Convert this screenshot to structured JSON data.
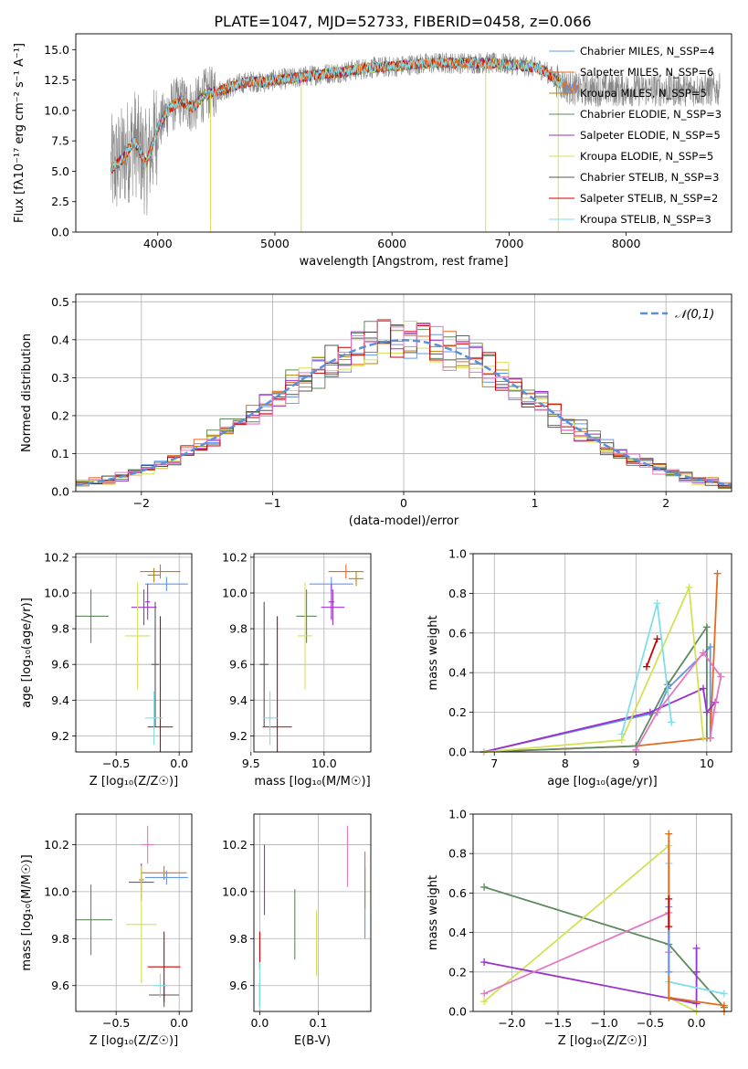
{
  "figure": {
    "title": "PLATE=1047, MJD=52733, FIBERID=0458, z=0.066"
  },
  "colors": {
    "series": [
      "#6495ed",
      "#e66a1e",
      "#b8860b",
      "#5f8a5f",
      "#9932cc",
      "#d4e157",
      "#555555",
      "#cc0000",
      "#80deea"
    ],
    "normal_curve": "#5b8fd6",
    "spectrum_data": "#888888",
    "grid": "#b0b0b0"
  },
  "chart_data": [
    {
      "id": "spectrum",
      "type": "line",
      "title": "PLATE=1047, MJD=52733, FIBERID=0458, z=0.066",
      "xlabel": "wavelength [Angstrom, rest frame]",
      "ylabel": "Flux [fλ10⁻¹⁷ erg cm⁻² s⁻¹ A⁻¹]",
      "xlim": [
        3300,
        8900
      ],
      "ylim": [
        0,
        16.3
      ],
      "xticks": [
        4000,
        5000,
        6000,
        7000,
        8000
      ],
      "yticks": [
        0.0,
        2.5,
        5.0,
        7.5,
        10.0,
        12.5,
        15.0
      ],
      "grid": false,
      "legend_position": "right",
      "legend": [
        "Chabrier MILES, N_SSP=4",
        "Salpeter MILES, N_SSP=6",
        "Kroupa MILES, N_SSP=5",
        "Chabrier ELODIE, N_SSP=3",
        "Salpeter ELODIE, N_SSP=5",
        "Kroupa ELODIE, N_SSP=5",
        "Chabrier STELIB, N_SSP=3",
        "Salpeter STELIB, N_SSP=2",
        "Kroupa STELIB, N_SSP=3"
      ],
      "continuum": {
        "x": [
          3600,
          3700,
          3800,
          3900,
          4000,
          4100,
          4200,
          4300,
          4400,
          4500,
          4600,
          4700,
          4800,
          4900,
          5000,
          5200,
          5400,
          5600,
          5800,
          6000,
          6200,
          6400,
          6600,
          6800,
          7000,
          7200,
          7300,
          7400,
          7500,
          7600
        ],
        "y": [
          5.2,
          6.0,
          7.5,
          5.6,
          8.5,
          10.2,
          10.8,
          10.2,
          11.3,
          11.6,
          11.8,
          12.2,
          12.4,
          12.3,
          12.5,
          12.7,
          13.0,
          13.2,
          13.5,
          13.6,
          13.8,
          13.9,
          13.9,
          13.9,
          13.8,
          13.6,
          13.3,
          12.5,
          11.9,
          11.7
        ]
      },
      "data_xmax": 8800
    },
    {
      "id": "residuals",
      "type": "line",
      "xlabel": "(data-model)/error",
      "ylabel": "Normed distribution",
      "xlim": [
        -2.5,
        2.5
      ],
      "ylim": [
        0,
        0.52
      ],
      "xticks": [
        -2,
        -1,
        0,
        1,
        2
      ],
      "yticks": [
        0.0,
        0.1,
        0.2,
        0.3,
        0.4,
        0.5
      ],
      "grid": true,
      "legend": [
        "𝒩(0,1)"
      ],
      "legend_position": "top-right",
      "bin_edges": [
        -2.5,
        2.5
      ],
      "n_bins": 50
    },
    {
      "id": "age_vs_Z",
      "type": "scatter",
      "xlabel": "Z [log₁₀(Z/Z☉)]",
      "ylabel": "age  [log₁₀(age/yr)]",
      "xlim": [
        -0.82,
        0.1
      ],
      "ylim": [
        9.11,
        10.22
      ],
      "xticks": [
        -0.5,
        0.0
      ],
      "yticks": [
        9.2,
        9.4,
        9.6,
        9.8,
        10.0,
        10.2
      ],
      "grid": true,
      "points": [
        {
          "s": 0,
          "x": -0.1,
          "y": 10.05,
          "xe": 0.17,
          "ye": 0.04
        },
        {
          "s": 1,
          "x": -0.15,
          "y": 10.12,
          "xe": 0.16,
          "ye": 0.04
        },
        {
          "s": 2,
          "x": -0.2,
          "y": 10.1,
          "xe": 0.05,
          "ye": 0.04
        },
        {
          "s": 3,
          "x": -0.7,
          "y": 9.87,
          "xe": 0.14,
          "ye": 0.15
        },
        {
          "s": 4,
          "x": -0.28,
          "y": 9.92,
          "xe": 0.1,
          "ye": 0.1
        },
        {
          "s": 5,
          "x": -0.33,
          "y": 9.76,
          "xe": 0.1,
          "ye": 0.3
        },
        {
          "s": 6,
          "x": -0.19,
          "y": 9.6,
          "xe": 0.03,
          "ye": 0.35
        },
        {
          "s": 7,
          "x": -0.15,
          "y": 9.25,
          "xe": 0.1,
          "ye": 0.62
        },
        {
          "s": 8,
          "x": -0.2,
          "y": 9.3,
          "xe": 0.07,
          "ye": 0.15
        },
        {
          "s": 4,
          "x": -0.25,
          "y": 9.95,
          "xe": 0.02,
          "ye": 0.1
        }
      ]
    },
    {
      "id": "age_vs_mass",
      "type": "scatter",
      "xlabel": "mass [log₁₀(M/M☉)]",
      "ylabel": "",
      "xlim": [
        9.52,
        10.32
      ],
      "ylim": [
        9.11,
        10.22
      ],
      "xticks": [
        9.5,
        10.0
      ],
      "yticks": [
        9.2,
        9.4,
        9.6,
        9.8,
        10.0,
        10.2
      ],
      "grid": true,
      "points": [
        {
          "s": 0,
          "x": 10.05,
          "y": 10.05,
          "xe": 0.15,
          "ye": 0.04
        },
        {
          "s": 1,
          "x": 10.15,
          "y": 10.12,
          "xe": 0.12,
          "ye": 0.04
        },
        {
          "s": 2,
          "x": 10.22,
          "y": 10.08,
          "xe": 0.05,
          "ye": 0.04
        },
        {
          "s": 3,
          "x": 9.88,
          "y": 9.87,
          "xe": 0.07,
          "ye": 0.15
        },
        {
          "s": 4,
          "x": 10.06,
          "y": 9.92,
          "xe": 0.08,
          "ye": 0.1
        },
        {
          "s": 5,
          "x": 9.87,
          "y": 9.76,
          "xe": 0.05,
          "ye": 0.3
        },
        {
          "s": 6,
          "x": 9.59,
          "y": 9.6,
          "xe": 0.03,
          "ye": 0.35
        },
        {
          "s": 7,
          "x": 9.68,
          "y": 9.25,
          "xe": 0.1,
          "ye": 0.62
        },
        {
          "s": 8,
          "x": 9.63,
          "y": 9.3,
          "xe": 0.05,
          "ye": 0.15
        },
        {
          "s": 4,
          "x": 10.05,
          "y": 9.95,
          "xe": 0.02,
          "ye": 0.1
        }
      ]
    },
    {
      "id": "mass_weight_vs_age",
      "type": "line",
      "xlabel": "age  [log₁₀(age/yr)]",
      "ylabel": "mass weight",
      "xlim": [
        6.7,
        10.35
      ],
      "ylim": [
        0,
        1.0
      ],
      "xticks": [
        7,
        8,
        9,
        10
      ],
      "yticks": [
        0.0,
        0.2,
        0.4,
        0.6,
        0.8,
        1.0
      ],
      "grid": true,
      "series": [
        {
          "s": 0,
          "x": [
            6.85,
            9.3,
            9.45,
            10.05,
            10.05
          ],
          "y": [
            0.0,
            0.2,
            0.32,
            0.53,
            0.07
          ]
        },
        {
          "s": 1,
          "x": [
            6.85,
            9.0,
            10.05,
            10.15
          ],
          "y": [
            0.0,
            0.03,
            0.07,
            0.9
          ]
        },
        {
          "s": 3,
          "x": [
            6.85,
            9.0,
            9.45,
            10.0,
            10.0
          ],
          "y": [
            0.0,
            0.03,
            0.34,
            0.63,
            0.07
          ]
        },
        {
          "s": 4,
          "x": [
            6.85,
            9.2,
            9.95,
            10.0,
            10.12
          ],
          "y": [
            0.0,
            0.2,
            0.32,
            0.2,
            0.25
          ]
        },
        {
          "s": 5,
          "x": [
            6.85,
            8.8,
            9.75,
            9.95
          ],
          "y": [
            0.0,
            0.06,
            0.83,
            0.07
          ]
        },
        {
          "s": 7,
          "x": [
            9.15,
            9.3
          ],
          "y": [
            0.43,
            0.57
          ]
        },
        {
          "s": 8,
          "x": [
            8.8,
            9.3,
            9.5,
            9.5
          ],
          "y": [
            0.09,
            0.75,
            0.15,
            0.15
          ]
        },
        {
          "s": 9,
          "x": [
            9.0,
            9.3,
            9.95,
            10.2,
            10.1,
            10.05
          ],
          "y": [
            0.01,
            0.2,
            0.5,
            0.38,
            0.2,
            0.07
          ]
        }
      ]
    },
    {
      "id": "mass_vs_Z",
      "type": "scatter",
      "xlabel": "Z [log₁₀(Z/Z☉)]",
      "ylabel": "mass [log₁₀(M/M☉)]",
      "xlim": [
        -0.82,
        0.1
      ],
      "ylim": [
        9.49,
        10.33
      ],
      "xticks": [
        -0.5,
        0.0
      ],
      "yticks": [
        9.6,
        9.8,
        10.0,
        10.2
      ],
      "grid": true,
      "points": [
        {
          "s": 0,
          "x": -0.1,
          "y": 10.06,
          "xe": 0.17,
          "ye": 0.03
        },
        {
          "s": 1,
          "x": -0.12,
          "y": 10.08,
          "xe": 0.18,
          "ye": 0.03
        },
        {
          "s": 2,
          "x": -0.3,
          "y": 10.05,
          "xe": 0.02,
          "ye": 0.05
        },
        {
          "s": 3,
          "x": -0.7,
          "y": 9.88,
          "xe": 0.17,
          "ye": 0.15
        },
        {
          "s": 4,
          "x": -0.3,
          "y": 10.04,
          "xe": 0.1,
          "ye": 0.08
        },
        {
          "s": 5,
          "x": -0.3,
          "y": 9.86,
          "xe": 0.12,
          "ye": 0.25
        },
        {
          "s": 6,
          "x": -0.12,
          "y": 9.56,
          "xe": 0.12,
          "ye": 0.05
        },
        {
          "s": 7,
          "x": -0.12,
          "y": 9.68,
          "xe": 0.13,
          "ye": 0.15
        },
        {
          "s": 8,
          "x": -0.15,
          "y": 9.6,
          "xe": 0.05,
          "ye": 0.05
        },
        {
          "s": 9,
          "x": -0.25,
          "y": 10.2,
          "xe": 0.05,
          "ye": 0.08
        }
      ]
    },
    {
      "id": "mass_vs_ebv",
      "type": "scatter",
      "xlabel": "E(B-V)",
      "ylabel": "",
      "xlim": [
        -0.01,
        0.19
      ],
      "ylim": [
        9.49,
        10.33
      ],
      "xticks": [
        0.0,
        0.1
      ],
      "yticks": [
        9.6,
        9.8,
        10.0,
        10.2
      ],
      "grid": true,
      "points": [
        {
          "s": 0,
          "x": 0.18,
          "y": 9.95,
          "xe": 0,
          "ye": 0.15
        },
        {
          "s": 1,
          "x": 0.18,
          "y": 10.05,
          "xe": 0,
          "ye": 0.12
        },
        {
          "s": 3,
          "x": 0.06,
          "y": 9.86,
          "xe": 0,
          "ye": 0.15
        },
        {
          "s": 4,
          "x": 0.008,
          "y": 10.05,
          "xe": 0,
          "ye": 0.15
        },
        {
          "s": 5,
          "x": 0.097,
          "y": 9.78,
          "xe": 0,
          "ye": 0.14
        },
        {
          "s": 6,
          "x": 0.0,
          "y": 9.56,
          "xe": 0,
          "ye": 0.05
        },
        {
          "s": 7,
          "x": 0.0,
          "y": 9.75,
          "xe": 0,
          "ye": 0.08
        },
        {
          "s": 8,
          "x": 0.0,
          "y": 9.6,
          "xe": 0,
          "ye": 0.1
        },
        {
          "s": 9,
          "x": 0.15,
          "y": 10.15,
          "xe": 0,
          "ye": 0.13
        }
      ]
    },
    {
      "id": "mass_weight_vs_Z",
      "type": "line",
      "xlabel": "Z [log₁₀(Z/Z☉)]",
      "ylabel": "mass weight",
      "xlim": [
        -2.42,
        0.38
      ],
      "ylim": [
        0,
        1.0
      ],
      "xticks": [
        -2.0,
        -1.5,
        -1.0,
        -0.5,
        0.0
      ],
      "yticks": [
        0.0,
        0.2,
        0.4,
        0.6,
        0.8,
        1.0
      ],
      "grid": true,
      "series": [
        {
          "s": 3,
          "x": [
            -2.3,
            -0.3,
            0.3
          ],
          "y": [
            0.63,
            0.34,
            0.02
          ]
        },
        {
          "s": 5,
          "x": [
            -2.3,
            -0.3,
            -0.3,
            0.0
          ],
          "y": [
            0.05,
            0.84,
            0.07,
            0.0
          ]
        },
        {
          "s": 4,
          "x": [
            -2.3,
            0.0,
            0.0,
            0.0
          ],
          "y": [
            0.25,
            0.04,
            0.2,
            0.32
          ]
        },
        {
          "s": 9,
          "x": [
            -2.3,
            -0.3,
            -0.3
          ],
          "y": [
            0.09,
            0.5,
            0.3
          ]
        },
        {
          "s": 8,
          "x": [
            -0.3,
            -0.3,
            0.3
          ],
          "y": [
            0.75,
            0.15,
            0.09
          ]
        },
        {
          "s": 1,
          "x": [
            -0.3,
            -0.3,
            0.3,
            0.3
          ],
          "y": [
            0.9,
            0.07,
            0.03,
            0.0
          ]
        },
        {
          "s": 0,
          "x": [
            -0.3,
            -0.3
          ],
          "y": [
            0.53,
            0.2
          ]
        },
        {
          "s": 7,
          "x": [
            -0.3,
            -0.3
          ],
          "y": [
            0.57,
            0.43
          ]
        }
      ]
    }
  ]
}
